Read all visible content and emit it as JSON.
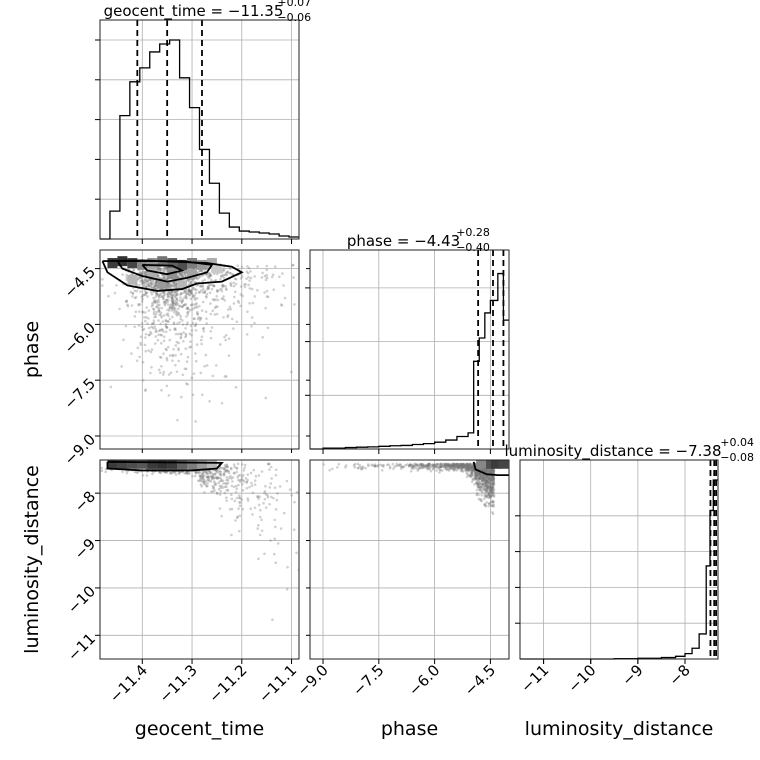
{
  "chart_data": {
    "type": "corner",
    "parameters": [
      {
        "key": "geocent_time",
        "label": "geocent_time",
        "title_main": "geocent_time = −11.35",
        "title_plus": "+0.07",
        "title_minus": "−0.06",
        "range": [
          -11.485,
          -11.085
        ],
        "median": -11.35,
        "q_low": -11.41,
        "q_high": -11.28,
        "ticks": [
          -11.4,
          -11.3,
          -11.2,
          -11.1
        ],
        "tick_labels": [
          "−11.4",
          "−11.3",
          "−11.2",
          "−11.1"
        ]
      },
      {
        "key": "phase",
        "label": "phase",
        "title_main": "phase = −4.43",
        "title_plus": "+0.28",
        "title_minus": "−0.40",
        "range": [
          -9.35,
          -4.0
        ],
        "median": -4.43,
        "q_low": -4.83,
        "q_high": -4.15,
        "ticks": [
          -9.0,
          -7.5,
          -6.0,
          -4.5
        ],
        "tick_labels": [
          "−9.0",
          "−7.5",
          "−6.0",
          "−4.5"
        ]
      },
      {
        "key": "luminosity_distance",
        "label": "luminosity_distance",
        "title_main": "luminosity_distance = −7.38",
        "title_plus": "+0.04",
        "title_minus": "−0.08",
        "range": [
          -11.5,
          -7.3
        ],
        "median": -7.38,
        "q_low": -7.46,
        "q_high": -7.34,
        "ticks": [
          -11,
          -10,
          -9,
          -8
        ],
        "tick_labels": [
          "−11",
          "−10",
          "−9",
          "−8"
        ]
      }
    ],
    "histograms": [
      {
        "param": "geocent_time",
        "edges": [
          -11.485,
          -11.465,
          -11.445,
          -11.425,
          -11.405,
          -11.385,
          -11.365,
          -11.345,
          -11.325,
          -11.305,
          -11.285,
          -11.265,
          -11.245,
          -11.225,
          -11.205,
          -11.185,
          -11.165,
          -11.145,
          -11.125,
          -11.105,
          -11.085
        ],
        "counts": [
          0,
          0.14,
          0.62,
          0.79,
          0.86,
          0.94,
          0.98,
          1.0,
          0.81,
          0.66,
          0.45,
          0.28,
          0.13,
          0.06,
          0.04,
          0.035,
          0.03,
          0.025,
          0.015,
          0.01
        ],
        "ymax": 1.0,
        "yticks": [
          0.2,
          0.4,
          0.6,
          0.8,
          1.0
        ]
      },
      {
        "param": "phase",
        "edges": [
          -9.35,
          -9.0,
          -8.7,
          -8.4,
          -8.1,
          -7.8,
          -7.5,
          -7.2,
          -6.9,
          -6.6,
          -6.3,
          -6.0,
          -5.7,
          -5.4,
          -5.1,
          -4.95,
          -4.8,
          -4.65,
          -4.5,
          -4.3,
          -4.15,
          -4.0
        ],
        "counts": [
          0,
          0.005,
          0.005,
          0.008,
          0.01,
          0.012,
          0.015,
          0.018,
          0.02,
          0.025,
          0.03,
          0.038,
          0.05,
          0.07,
          0.09,
          0.49,
          0.62,
          0.76,
          0.83,
          0.98,
          0.72
        ],
        "ymax": 1.0,
        "yticks": [
          0.3,
          0.6,
          0.9
        ]
      },
      {
        "param": "luminosity_distance",
        "edges": [
          -11.5,
          -11.0,
          -10.5,
          -10.0,
          -9.5,
          -9.0,
          -8.5,
          -8.2,
          -8.0,
          -7.85,
          -7.7,
          -7.55,
          -7.47,
          -7.4,
          -7.3
        ],
        "counts": [
          0,
          0,
          0,
          0,
          0.002,
          0.004,
          0.008,
          0.015,
          0.03,
          0.06,
          0.14,
          0.52,
          0.83,
          1.0
        ],
        "ymax": 1.0,
        "yticks": [
          0.2,
          0.4,
          0.6,
          0.8
        ]
      }
    ],
    "panels_2d": [
      {
        "x": "geocent_time",
        "y": "phase",
        "bins": [
          [
            -11.46,
            -4.35,
            0.9
          ],
          [
            -11.44,
            -4.3,
            0.95
          ],
          [
            -11.42,
            -4.35,
            0.85
          ],
          [
            -11.4,
            -4.4,
            0.5
          ],
          [
            -11.38,
            -4.35,
            0.45
          ],
          [
            -11.36,
            -4.3,
            0.6
          ],
          [
            -11.34,
            -4.35,
            0.7
          ],
          [
            -11.32,
            -4.4,
            0.8
          ],
          [
            -11.3,
            -4.35,
            0.55
          ],
          [
            -11.28,
            -4.4,
            0.4
          ],
          [
            -11.26,
            -4.35,
            0.3
          ],
          [
            -11.38,
            -4.6,
            0.3
          ],
          [
            -11.34,
            -4.65,
            0.45
          ],
          [
            -11.3,
            -4.65,
            0.35
          ],
          [
            -11.42,
            -4.8,
            0.25
          ],
          [
            -11.36,
            -4.9,
            0.4
          ],
          [
            -11.32,
            -4.95,
            0.25
          ],
          [
            -11.25,
            -4.5,
            0.15
          ]
        ],
        "contours": [
          [
            [
              -11.48,
              -4.3
            ],
            [
              -11.47,
              -4.6
            ],
            [
              -11.43,
              -4.95
            ],
            [
              -11.37,
              -5.1
            ],
            [
              -11.32,
              -5.05
            ],
            [
              -11.29,
              -4.9
            ],
            [
              -11.24,
              -4.85
            ],
            [
              -11.2,
              -4.6
            ],
            [
              -11.22,
              -4.45
            ],
            [
              -11.27,
              -4.35
            ],
            [
              -11.4,
              -4.28
            ],
            [
              -11.48,
              -4.3
            ]
          ],
          [
            [
              -11.45,
              -4.3
            ],
            [
              -11.44,
              -4.5
            ],
            [
              -11.4,
              -4.7
            ],
            [
              -11.35,
              -4.85
            ],
            [
              -11.31,
              -4.75
            ],
            [
              -11.27,
              -4.6
            ],
            [
              -11.26,
              -4.4
            ],
            [
              -11.32,
              -4.3
            ],
            [
              -11.45,
              -4.3
            ]
          ],
          [
            [
              -11.4,
              -4.4
            ],
            [
              -11.39,
              -4.55
            ],
            [
              -11.35,
              -4.65
            ],
            [
              -11.32,
              -4.55
            ],
            [
              -11.34,
              -4.42
            ],
            [
              -11.4,
              -4.4
            ]
          ]
        ],
        "scatter_seed": 11,
        "scatter_count": 1400
      },
      {
        "x": "geocent_time",
        "y": "luminosity_distance",
        "bins": [
          [
            -11.46,
            -7.38,
            0.9
          ],
          [
            -11.44,
            -7.38,
            0.85
          ],
          [
            -11.42,
            -7.38,
            0.8
          ],
          [
            -11.4,
            -7.38,
            0.75
          ],
          [
            -11.38,
            -7.38,
            0.9
          ],
          [
            -11.36,
            -7.38,
            0.95
          ],
          [
            -11.34,
            -7.38,
            0.9
          ],
          [
            -11.32,
            -7.38,
            0.7
          ],
          [
            -11.3,
            -7.38,
            0.55
          ],
          [
            -11.28,
            -7.38,
            0.4
          ],
          [
            -11.26,
            -7.38,
            0.25
          ]
        ],
        "contours": [
          [
            [
              -11.47,
              -7.34
            ],
            [
              -11.47,
              -7.48
            ],
            [
              -11.4,
              -7.52
            ],
            [
              -11.3,
              -7.52
            ],
            [
              -11.25,
              -7.48
            ],
            [
              -11.24,
              -7.36
            ],
            [
              -11.47,
              -7.34
            ]
          ]
        ],
        "scatter_seed": 23,
        "scatter_count": 1200
      },
      {
        "x": "phase",
        "y": "luminosity_distance",
        "bins": [
          [
            -4.55,
            -7.38,
            0.8
          ],
          [
            -4.35,
            -7.38,
            0.9
          ],
          [
            -4.15,
            -7.38,
            0.85
          ],
          [
            -4.75,
            -7.38,
            0.5
          ]
        ],
        "contours": [
          [
            [
              -4.95,
              -7.34
            ],
            [
              -4.9,
              -7.5
            ],
            [
              -4.6,
              -7.6
            ],
            [
              -4.3,
              -7.62
            ],
            [
              -4.0,
              -7.62
            ]
          ]
        ],
        "scatter_seed": 37,
        "scatter_count": 1200
      }
    ]
  }
}
